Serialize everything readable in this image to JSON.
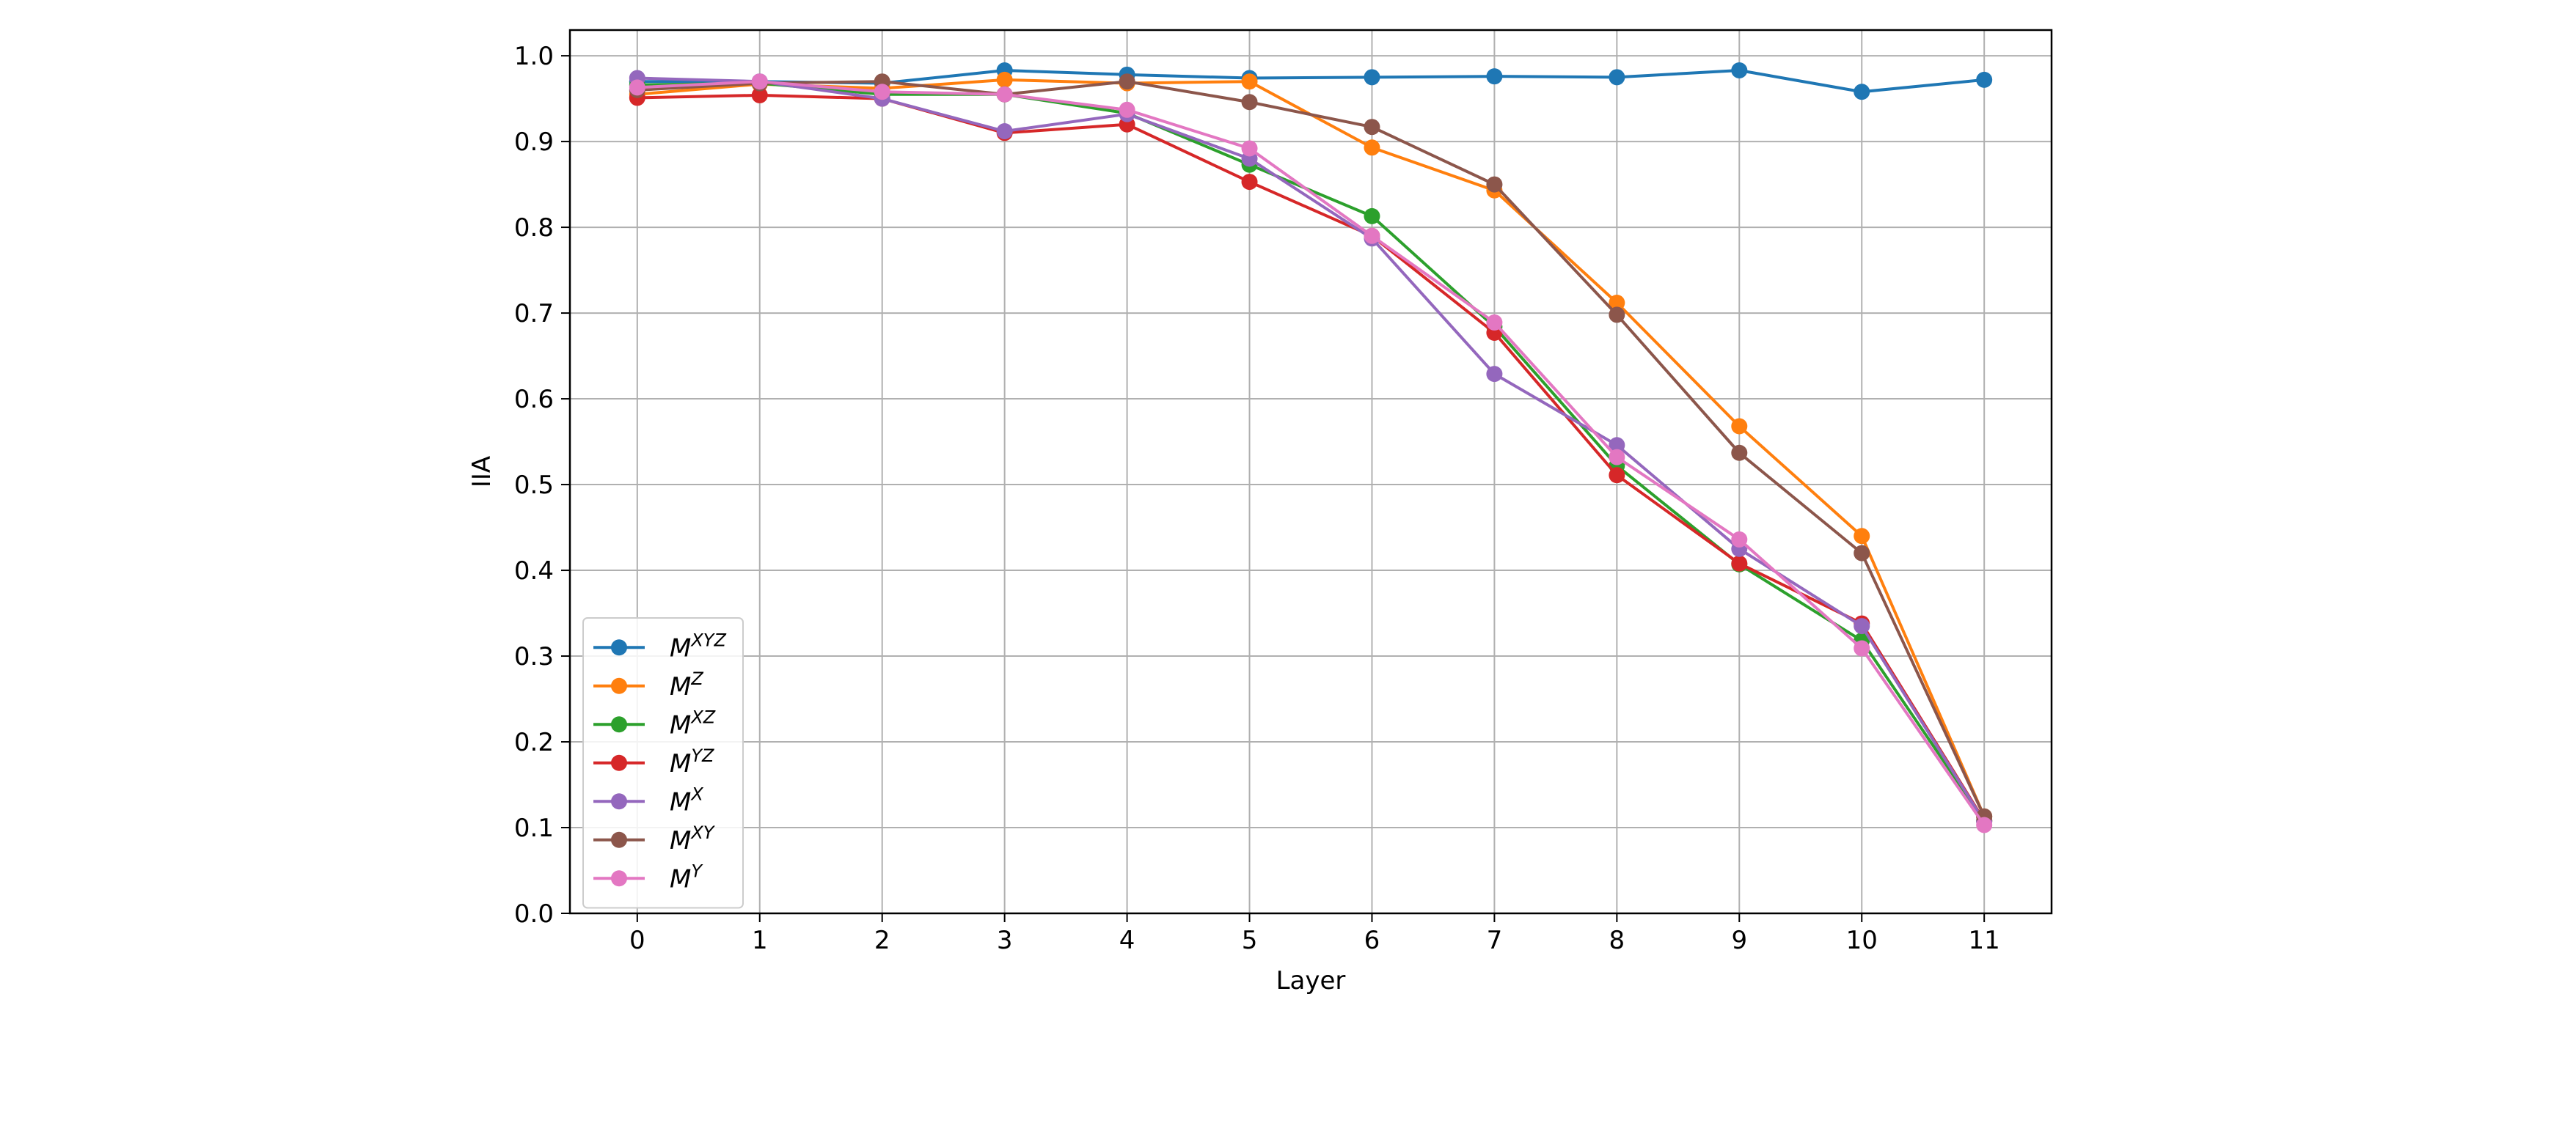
{
  "chart_data": {
    "type": "line",
    "title": "",
    "xlabel": "Layer",
    "ylabel": "IIA",
    "x": [
      0,
      1,
      2,
      3,
      4,
      5,
      6,
      7,
      8,
      9,
      10,
      11
    ],
    "xticks": [
      "0",
      "1",
      "2",
      "3",
      "4",
      "5",
      "6",
      "7",
      "8",
      "9",
      "10",
      "11"
    ],
    "yticks": [
      "0.0",
      "0.1",
      "0.2",
      "0.3",
      "0.4",
      "0.5",
      "0.6",
      "0.7",
      "0.8",
      "0.9",
      "1.0"
    ],
    "xlim": [
      -0.55,
      11.55
    ],
    "ylim": [
      0.0,
      1.03
    ],
    "grid": true,
    "legend_position": "lower-left",
    "series": [
      {
        "base": "M",
        "sup": "XYZ",
        "color": "#1f77b4",
        "values": [
          0.97,
          0.97,
          0.968,
          0.983,
          0.978,
          0.974,
          0.975,
          0.976,
          0.975,
          0.983,
          0.958,
          0.972
        ]
      },
      {
        "base": "M",
        "sup": "Z",
        "color": "#ff7f0e",
        "values": [
          0.955,
          0.967,
          0.962,
          0.972,
          0.968,
          0.97,
          0.893,
          0.843,
          0.712,
          0.568,
          0.44,
          0.113
        ]
      },
      {
        "base": "M",
        "sup": "XZ",
        "color": "#2ca02c",
        "values": [
          0.966,
          0.968,
          0.955,
          0.955,
          0.933,
          0.873,
          0.813,
          0.684,
          0.522,
          0.407,
          0.318,
          0.108
        ]
      },
      {
        "base": "M",
        "sup": "YZ",
        "color": "#d62728",
        "values": [
          0.951,
          0.954,
          0.95,
          0.91,
          0.92,
          0.853,
          0.79,
          0.677,
          0.511,
          0.408,
          0.338,
          0.108
        ]
      },
      {
        "base": "M",
        "sup": "X",
        "color": "#9467bd",
        "values": [
          0.974,
          0.97,
          0.95,
          0.912,
          0.932,
          0.88,
          0.787,
          0.629,
          0.546,
          0.425,
          0.335,
          0.107
        ]
      },
      {
        "base": "M",
        "sup": "XY",
        "color": "#8c564b",
        "values": [
          0.96,
          0.968,
          0.97,
          0.955,
          0.97,
          0.946,
          0.917,
          0.85,
          0.698,
          0.537,
          0.42,
          0.113
        ]
      },
      {
        "base": "M",
        "sup": "Y",
        "color": "#e377c2",
        "values": [
          0.963,
          0.97,
          0.958,
          0.955,
          0.937,
          0.892,
          0.79,
          0.689,
          0.532,
          0.436,
          0.309,
          0.103
        ]
      }
    ]
  }
}
